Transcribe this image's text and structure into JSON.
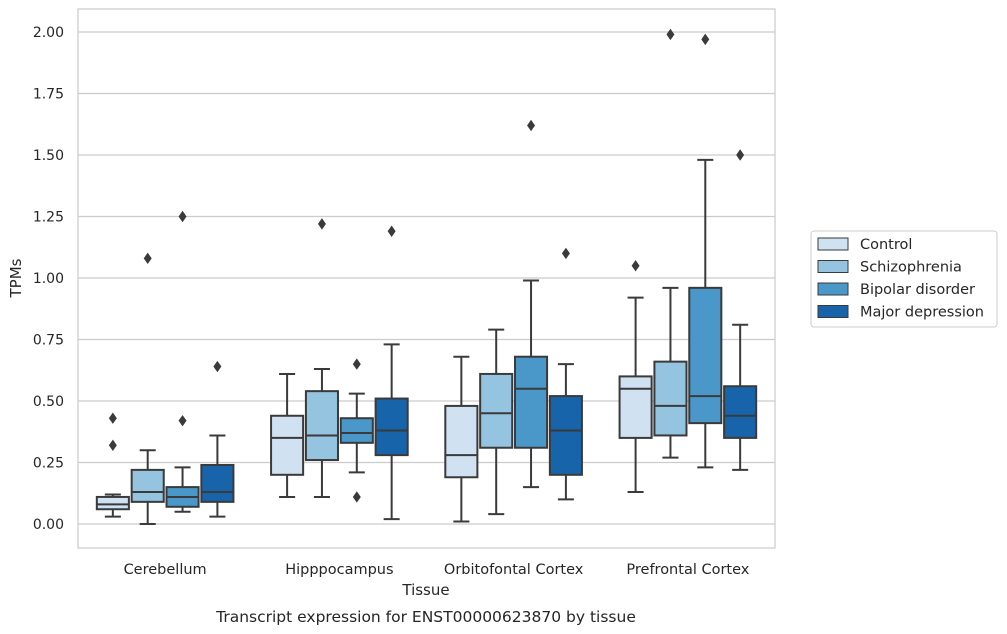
{
  "chart_data": {
    "type": "box",
    "title": "",
    "caption": "Transcript expression for ENST00000623870 by tissue",
    "xlabel": "Tissue",
    "ylabel": "TPMs",
    "ylim": [
      -0.1,
      2.1
    ],
    "yticks": [
      0.0,
      0.25,
      0.5,
      0.75,
      1.0,
      1.25,
      1.5,
      1.75,
      2.0
    ],
    "ytick_labels": [
      "0.00",
      "0.25",
      "0.50",
      "0.75",
      "1.00",
      "1.25",
      "1.50",
      "1.75",
      "2.00"
    ],
    "grid": "horizontal",
    "legend_position": "right",
    "categories": [
      "Cerebellum",
      "Hipppocampus",
      "Orbitofontal Cortex",
      "Prefrontal Cortex"
    ],
    "series": [
      {
        "name": "Control",
        "color": "#d0e1f2",
        "boxes": [
          {
            "whisker_low": 0.03,
            "q1": 0.06,
            "median": 0.08,
            "q3": 0.11,
            "whisker_high": 0.12,
            "outliers": [
              0.43,
              0.32
            ]
          },
          {
            "whisker_low": 0.11,
            "q1": 0.2,
            "median": 0.35,
            "q3": 0.44,
            "whisker_high": 0.61,
            "outliers": []
          },
          {
            "whisker_low": 0.01,
            "q1": 0.19,
            "median": 0.28,
            "q3": 0.48,
            "whisker_high": 0.68,
            "outliers": []
          },
          {
            "whisker_low": 0.13,
            "q1": 0.35,
            "median": 0.55,
            "q3": 0.6,
            "whisker_high": 0.92,
            "outliers": [
              1.05
            ]
          }
        ]
      },
      {
        "name": "Schizophrenia",
        "color": "#94c4df",
        "boxes": [
          {
            "whisker_low": 0.0,
            "q1": 0.09,
            "median": 0.13,
            "q3": 0.22,
            "whisker_high": 0.3,
            "outliers": [
              1.08
            ]
          },
          {
            "whisker_low": 0.11,
            "q1": 0.26,
            "median": 0.36,
            "q3": 0.54,
            "whisker_high": 0.63,
            "outliers": [
              1.22
            ]
          },
          {
            "whisker_low": 0.04,
            "q1": 0.31,
            "median": 0.45,
            "q3": 0.61,
            "whisker_high": 0.79,
            "outliers": []
          },
          {
            "whisker_low": 0.27,
            "q1": 0.36,
            "median": 0.48,
            "q3": 0.66,
            "whisker_high": 0.96,
            "outliers": [
              1.99
            ]
          }
        ]
      },
      {
        "name": "Bipolar disorder",
        "color": "#4a98c9",
        "boxes": [
          {
            "whisker_low": 0.05,
            "q1": 0.07,
            "median": 0.11,
            "q3": 0.15,
            "whisker_high": 0.23,
            "outliers": [
              1.25,
              0.42
            ]
          },
          {
            "whisker_low": 0.21,
            "q1": 0.33,
            "median": 0.37,
            "q3": 0.43,
            "whisker_high": 0.53,
            "outliers": [
              0.65,
              0.11
            ]
          },
          {
            "whisker_low": 0.15,
            "q1": 0.31,
            "median": 0.55,
            "q3": 0.68,
            "whisker_high": 0.99,
            "outliers": [
              1.62
            ]
          },
          {
            "whisker_low": 0.23,
            "q1": 0.41,
            "median": 0.52,
            "q3": 0.96,
            "whisker_high": 1.48,
            "outliers": [
              1.97
            ]
          }
        ]
      },
      {
        "name": "Major depression",
        "color": "#1764ab",
        "boxes": [
          {
            "whisker_low": 0.03,
            "q1": 0.09,
            "median": 0.13,
            "q3": 0.24,
            "whisker_high": 0.36,
            "outliers": [
              0.64
            ]
          },
          {
            "whisker_low": 0.02,
            "q1": 0.28,
            "median": 0.38,
            "q3": 0.51,
            "whisker_high": 0.73,
            "outliers": [
              1.19
            ]
          },
          {
            "whisker_low": 0.1,
            "q1": 0.2,
            "median": 0.38,
            "q3": 0.52,
            "whisker_high": 0.65,
            "outliers": [
              1.1
            ]
          },
          {
            "whisker_low": 0.22,
            "q1": 0.35,
            "median": 0.44,
            "q3": 0.56,
            "whisker_high": 0.81,
            "outliers": [
              1.5
            ]
          }
        ]
      }
    ]
  }
}
